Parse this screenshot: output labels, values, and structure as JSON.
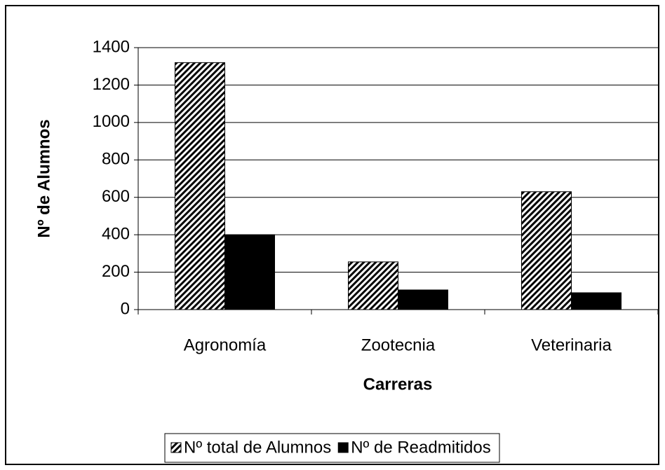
{
  "chart_data": {
    "type": "bar",
    "categories": [
      "Agronomía",
      "Zootecnia",
      "Veterinaria"
    ],
    "series": [
      {
        "name": "Nº total de Alumnos",
        "color": "#000000",
        "pattern": "hatch",
        "values": [
          1320,
          255,
          630
        ]
      },
      {
        "name": "Nº de Readmitidos",
        "color": "#000000",
        "pattern": "solid",
        "values": [
          400,
          105,
          90
        ]
      }
    ],
    "xlabel": "Carreras",
    "ylabel": "Nº de Alumnos",
    "ylim": [
      0,
      1400
    ],
    "yticks": [
      0,
      200,
      400,
      600,
      800,
      1000,
      1200,
      1400
    ],
    "grid": true,
    "legend": "bottom"
  }
}
